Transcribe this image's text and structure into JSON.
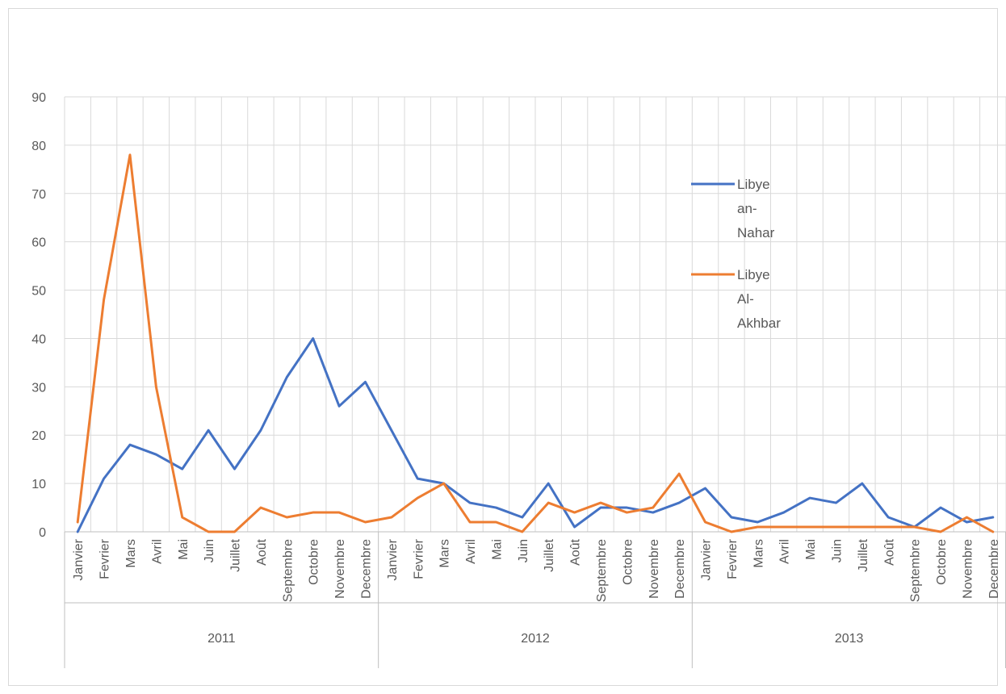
{
  "chart_data": {
    "type": "line",
    "title": "",
    "xlabel": "",
    "ylabel": "",
    "ylim": [
      0,
      90
    ],
    "yticks": [
      "0",
      "10",
      "20",
      "30",
      "40",
      "50",
      "60",
      "70",
      "80",
      "90"
    ],
    "grid": "vertical and horizontal",
    "legend_position": "right",
    "groups": [
      {
        "label": "2011",
        "months": [
          "Janvier",
          "Fevrier",
          "Mars",
          "Avril",
          "Mai",
          "Juin",
          "Juillet",
          "Août",
          "Septembre",
          "Octobre",
          "Novembre",
          "Decembre"
        ]
      },
      {
        "label": "2012",
        "months": [
          "Janvier",
          "Fevrier",
          "Mars",
          "Avril",
          "Mai",
          "Juin",
          "Juillet",
          "Août",
          "Septembre",
          "Octobre",
          "Novembre",
          "Decembre"
        ]
      },
      {
        "label": "2013",
        "months": [
          "Janvier",
          "Fevrier",
          "Mars",
          "Avril",
          "Mai",
          "Juin",
          "Juillet",
          "Août",
          "Septembre",
          "Octobre",
          "Novembre",
          "Decembre"
        ]
      }
    ],
    "series": [
      {
        "name": "Libye an-Nahar",
        "legend_lines": [
          "Libye",
          "an-",
          "Nahar"
        ],
        "color": "#4472c4",
        "values": [
          0,
          11,
          18,
          16,
          13,
          21,
          13,
          21,
          32,
          40,
          26,
          31,
          21,
          11,
          10,
          6,
          5,
          3,
          10,
          1,
          5,
          5,
          4,
          6,
          9,
          3,
          2,
          4,
          7,
          6,
          10,
          3,
          1,
          5,
          2,
          3
        ]
      },
      {
        "name": "Libye Al-Akhbar",
        "legend_lines": [
          "Libye",
          "Al-",
          "Akhbar"
        ],
        "color": "#ed7d31",
        "values": [
          2,
          48,
          78,
          30,
          3,
          0,
          0,
          5,
          3,
          4,
          4,
          2,
          3,
          7,
          10,
          2,
          2,
          0,
          6,
          4,
          6,
          4,
          5,
          12,
          2,
          0,
          1,
          1,
          1,
          1,
          1,
          1,
          1,
          0,
          3,
          0
        ]
      }
    ]
  }
}
